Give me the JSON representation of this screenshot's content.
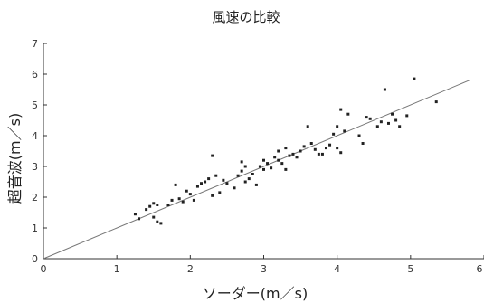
{
  "chart_data": {
    "type": "scatter",
    "title": "風速の比較",
    "xlabel": "ソーダー(m／s)",
    "ylabel": "超音波(m／s)",
    "xlim": [
      0,
      6
    ],
    "ylim": [
      0,
      7
    ],
    "xticks": [
      0,
      1,
      2,
      3,
      4,
      5,
      6
    ],
    "yticks": [
      0,
      1,
      2,
      3,
      4,
      5,
      6,
      7
    ],
    "grid": false,
    "points": [
      {
        "x": 1.25,
        "y": 1.45
      },
      {
        "x": 1.3,
        "y": 1.3
      },
      {
        "x": 1.4,
        "y": 1.6
      },
      {
        "x": 1.45,
        "y": 1.7
      },
      {
        "x": 1.5,
        "y": 1.35
      },
      {
        "x": 1.55,
        "y": 1.2
      },
      {
        "x": 1.5,
        "y": 1.8
      },
      {
        "x": 1.6,
        "y": 1.15
      },
      {
        "x": 1.7,
        "y": 1.75
      },
      {
        "x": 1.75,
        "y": 1.9
      },
      {
        "x": 1.8,
        "y": 2.4
      },
      {
        "x": 1.85,
        "y": 1.95
      },
      {
        "x": 1.9,
        "y": 1.85
      },
      {
        "x": 1.95,
        "y": 2.2
      },
      {
        "x": 2.0,
        "y": 2.1
      },
      {
        "x": 2.1,
        "y": 2.35
      },
      {
        "x": 2.15,
        "y": 2.45
      },
      {
        "x": 2.2,
        "y": 2.5
      },
      {
        "x": 2.25,
        "y": 2.6
      },
      {
        "x": 2.3,
        "y": 2.05
      },
      {
        "x": 2.3,
        "y": 3.35
      },
      {
        "x": 2.35,
        "y": 2.7
      },
      {
        "x": 2.4,
        "y": 2.15
      },
      {
        "x": 2.45,
        "y": 2.55
      },
      {
        "x": 2.5,
        "y": 2.45
      },
      {
        "x": 2.6,
        "y": 2.3
      },
      {
        "x": 2.65,
        "y": 2.7
      },
      {
        "x": 2.7,
        "y": 2.85
      },
      {
        "x": 2.75,
        "y": 3.0
      },
      {
        "x": 2.7,
        "y": 3.15
      },
      {
        "x": 2.75,
        "y": 2.5
      },
      {
        "x": 2.8,
        "y": 2.6
      },
      {
        "x": 2.85,
        "y": 2.75
      },
      {
        "x": 2.9,
        "y": 2.4
      },
      {
        "x": 2.95,
        "y": 3.0
      },
      {
        "x": 3.0,
        "y": 2.9
      },
      {
        "x": 3.0,
        "y": 3.2
      },
      {
        "x": 3.05,
        "y": 3.1
      },
      {
        "x": 3.1,
        "y": 2.95
      },
      {
        "x": 3.15,
        "y": 3.3
      },
      {
        "x": 3.2,
        "y": 3.2
      },
      {
        "x": 3.2,
        "y": 3.5
      },
      {
        "x": 3.25,
        "y": 3.1
      },
      {
        "x": 3.3,
        "y": 3.6
      },
      {
        "x": 3.35,
        "y": 3.35
      },
      {
        "x": 3.4,
        "y": 3.4
      },
      {
        "x": 3.45,
        "y": 3.3
      },
      {
        "x": 3.5,
        "y": 3.5
      },
      {
        "x": 3.55,
        "y": 3.65
      },
      {
        "x": 3.6,
        "y": 4.3
      },
      {
        "x": 3.65,
        "y": 3.75
      },
      {
        "x": 3.7,
        "y": 3.55
      },
      {
        "x": 3.75,
        "y": 3.4
      },
      {
        "x": 3.8,
        "y": 3.4
      },
      {
        "x": 3.85,
        "y": 3.6
      },
      {
        "x": 3.9,
        "y": 3.7
      },
      {
        "x": 3.95,
        "y": 4.05
      },
      {
        "x": 4.0,
        "y": 3.6
      },
      {
        "x": 4.05,
        "y": 4.85
      },
      {
        "x": 4.0,
        "y": 4.3
      },
      {
        "x": 4.05,
        "y": 3.45
      },
      {
        "x": 4.1,
        "y": 4.15
      },
      {
        "x": 4.15,
        "y": 4.7
      },
      {
        "x": 4.3,
        "y": 4.0
      },
      {
        "x": 4.35,
        "y": 3.75
      },
      {
        "x": 4.4,
        "y": 4.6
      },
      {
        "x": 4.45,
        "y": 4.55
      },
      {
        "x": 4.55,
        "y": 4.3
      },
      {
        "x": 4.6,
        "y": 4.45
      },
      {
        "x": 4.65,
        "y": 5.5
      },
      {
        "x": 4.7,
        "y": 4.4
      },
      {
        "x": 4.75,
        "y": 4.7
      },
      {
        "x": 4.8,
        "y": 4.5
      },
      {
        "x": 4.85,
        "y": 4.3
      },
      {
        "x": 4.95,
        "y": 4.65
      },
      {
        "x": 5.05,
        "y": 5.85
      },
      {
        "x": 5.35,
        "y": 5.1
      },
      {
        "x": 1.55,
        "y": 1.75
      },
      {
        "x": 2.05,
        "y": 1.9
      },
      {
        "x": 3.3,
        "y": 2.9
      }
    ],
    "fit_line": {
      "x": [
        0,
        5.8
      ],
      "y": [
        0,
        5.8
      ]
    }
  }
}
